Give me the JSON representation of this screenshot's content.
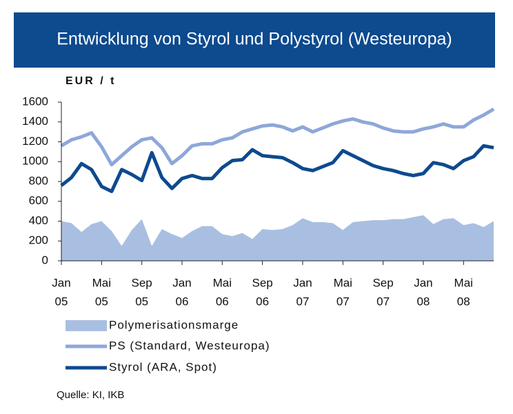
{
  "chart_data": {
    "type": "line",
    "title": "Entwicklung von Styrol und Polystyrol (Westeuropa)",
    "y_label": "EUR / t",
    "source": "Quelle: KI, IKB",
    "categories": [
      [
        "Jan",
        "05"
      ],
      null,
      null,
      null,
      [
        "Mai",
        "05"
      ],
      null,
      null,
      null,
      [
        "Sep",
        "05"
      ],
      null,
      null,
      null,
      [
        "Jan",
        "06"
      ],
      null,
      null,
      null,
      [
        "Mai",
        "06"
      ],
      null,
      null,
      null,
      [
        "Sep",
        "06"
      ],
      null,
      null,
      null,
      [
        "Jan",
        "07"
      ],
      null,
      null,
      null,
      [
        "Mai",
        "07"
      ],
      null,
      null,
      null,
      [
        "Sep",
        "07"
      ],
      null,
      null,
      null,
      [
        "Jan",
        "08"
      ],
      null,
      null,
      null,
      [
        "Mai",
        "08"
      ],
      null,
      null,
      null
    ],
    "ylim": [
      0,
      1600
    ],
    "yticks": [
      0,
      200,
      400,
      600,
      800,
      1000,
      1200,
      1400,
      1600
    ],
    "series": [
      {
        "name": "Polymerisationsmarge",
        "kind": "area",
        "color": "#a9bfe2",
        "values": [
          400,
          380,
          290,
          370,
          400,
          300,
          150,
          310,
          420,
          150,
          320,
          270,
          230,
          300,
          350,
          350,
          270,
          250,
          280,
          220,
          320,
          310,
          320,
          360,
          430,
          390,
          390,
          380,
          310,
          390,
          400,
          410,
          410,
          420,
          420,
          440,
          460,
          370,
          420,
          430,
          360,
          380,
          340,
          400
        ]
      },
      {
        "name": "PS (Standard, Westeuropa)",
        "kind": "line",
        "color": "#8ea7d9",
        "values": [
          1160,
          1220,
          1250,
          1290,
          1150,
          970,
          1060,
          1150,
          1220,
          1240,
          1140,
          980,
          1060,
          1160,
          1180,
          1180,
          1220,
          1240,
          1300,
          1330,
          1360,
          1370,
          1350,
          1310,
          1350,
          1300,
          1340,
          1380,
          1410,
          1430,
          1400,
          1380,
          1340,
          1310,
          1300,
          1300,
          1330,
          1350,
          1380,
          1350,
          1350,
          1420,
          1470,
          1530
        ]
      },
      {
        "name": "Styrol (ARA, Spot)",
        "kind": "line",
        "color": "#0d4a8e",
        "values": [
          760,
          840,
          980,
          920,
          750,
          700,
          920,
          870,
          810,
          1090,
          840,
          730,
          830,
          860,
          830,
          830,
          940,
          1010,
          1020,
          1120,
          1060,
          1050,
          1040,
          990,
          930,
          910,
          950,
          990,
          1110,
          1060,
          1010,
          960,
          930,
          910,
          880,
          860,
          880,
          990,
          970,
          930,
          1010,
          1050,
          1160,
          1140
        ]
      }
    ]
  }
}
